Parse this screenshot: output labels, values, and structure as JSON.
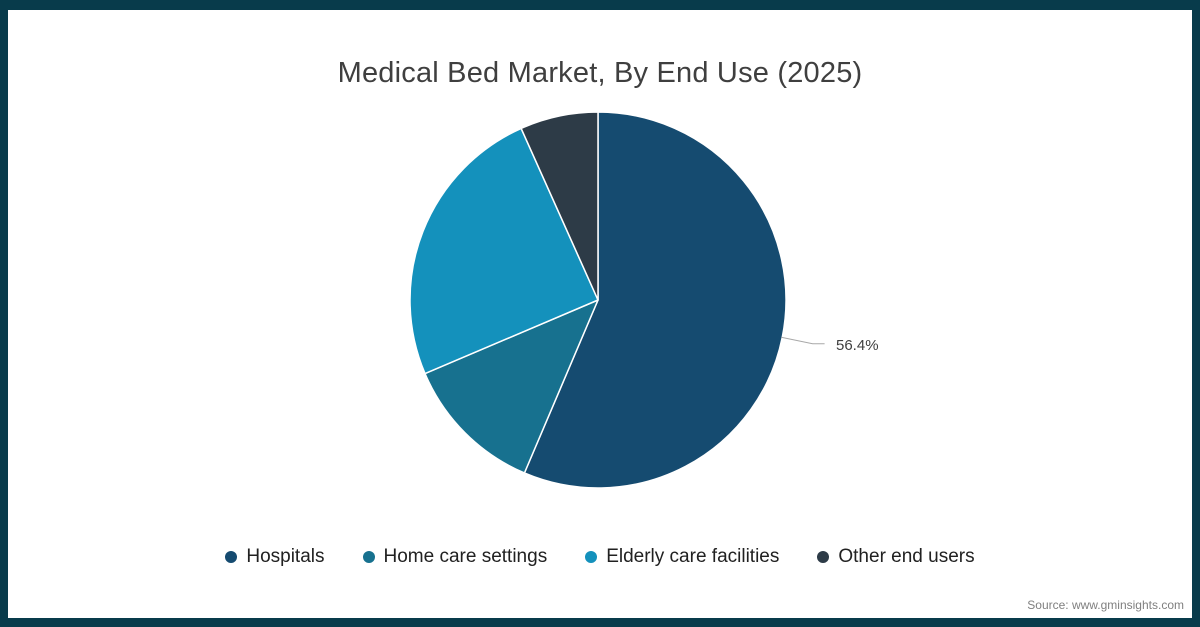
{
  "chart_data": {
    "type": "pie",
    "title": "Medical Bed Market, By End Use (2025)",
    "categories": [
      "Hospitals",
      "Home care settings",
      "Elderly care facilities",
      "Other end users"
    ],
    "values": [
      56.4,
      12.2,
      24.7,
      6.7
    ],
    "colors": [
      "#154b70",
      "#17718f",
      "#1491bc",
      "#2d3b47"
    ],
    "data_label": "56.4%",
    "start_angle_deg": 0,
    "direction": "clockwise",
    "legend_position": "bottom",
    "slice_border_color": "#ffffff",
    "leader_line_color": "#a8a8a8"
  },
  "frame": {
    "border_color": "#083b4b"
  },
  "footer": {
    "source": "Source: www.gminsights.com"
  }
}
